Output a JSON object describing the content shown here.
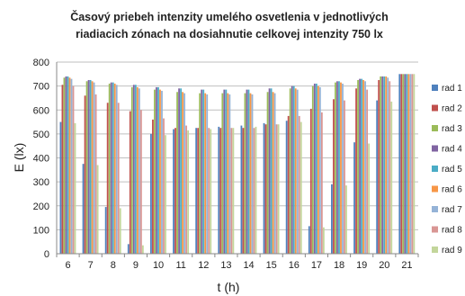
{
  "chart_data": {
    "type": "bar",
    "title_lines": [
      "Časový priebeh intenzity umelého osvetlenia v jednotlivých",
      "riadiacich zónach na dosiahnutie celkovej intenzity 750 lx"
    ],
    "xlabel": "t (h)",
    "ylabel": "E (lx)",
    "ylim": [
      0,
      800
    ],
    "yticks": [
      0,
      100,
      200,
      300,
      400,
      500,
      600,
      700,
      800
    ],
    "grid": true,
    "legend_position": "right",
    "categories": [
      "6",
      "7",
      "8",
      "9",
      "10",
      "11",
      "12",
      "13",
      "14",
      "15",
      "16",
      "17",
      "18",
      "19",
      "20",
      "21"
    ],
    "series": [
      {
        "name": "rad 1",
        "color": "#4f81bd",
        "values": [
          550,
          375,
          195,
          40,
          500,
          520,
          525,
          530,
          535,
          545,
          555,
          115,
          290,
          465,
          640,
          750
        ]
      },
      {
        "name": "rad 2",
        "color": "#c0504d",
        "values": [
          705,
          660,
          630,
          595,
          560,
          525,
          525,
          525,
          525,
          540,
          575,
          605,
          645,
          690,
          725,
          750
        ]
      },
      {
        "name": "rad 3",
        "color": "#9bbb59",
        "values": [
          735,
          720,
          710,
          695,
          685,
          675,
          670,
          670,
          670,
          675,
          690,
          700,
          715,
          725,
          740,
          750
        ]
      },
      {
        "name": "rad 4",
        "color": "#8064a2",
        "values": [
          740,
          725,
          715,
          705,
          695,
          690,
          685,
          685,
          685,
          690,
          700,
          710,
          720,
          730,
          740,
          750
        ]
      },
      {
        "name": "rad 5",
        "color": "#4bacc6",
        "values": [
          740,
          725,
          715,
          705,
          695,
          690,
          685,
          685,
          685,
          690,
          700,
          710,
          720,
          730,
          740,
          750
        ]
      },
      {
        "name": "rad 6",
        "color": "#f79646",
        "values": [
          735,
          720,
          710,
          695,
          685,
          675,
          670,
          670,
          670,
          675,
          690,
          700,
          715,
          725,
          740,
          750
        ]
      },
      {
        "name": "rad 7",
        "color": "#95b3d7",
        "values": [
          730,
          715,
          705,
          690,
          680,
          670,
          665,
          665,
          665,
          670,
          685,
          695,
          710,
          720,
          735,
          750
        ]
      },
      {
        "name": "rad 8",
        "color": "#d99694",
        "values": [
          700,
          665,
          630,
          600,
          565,
          535,
          525,
          525,
          525,
          540,
          575,
          590,
          640,
          685,
          720,
          750
        ]
      },
      {
        "name": "rad 9",
        "color": "#c3d69b",
        "values": [
          545,
          370,
          190,
          35,
          495,
          515,
          520,
          525,
          530,
          540,
          550,
          110,
          285,
          460,
          635,
          750
        ]
      }
    ]
  }
}
